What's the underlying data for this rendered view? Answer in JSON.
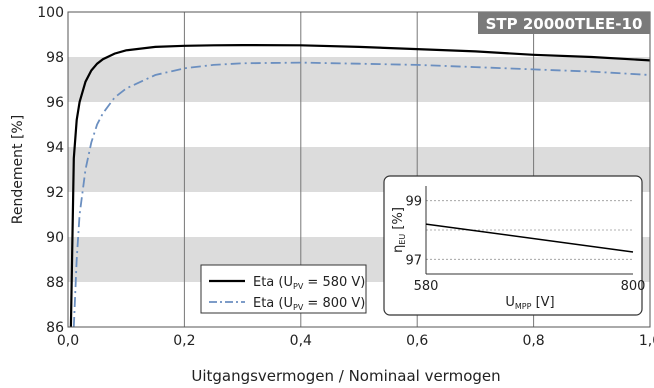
{
  "chart_data": [
    {
      "type": "line",
      "title": "STP 20000TLEE-10",
      "xlabel": "Uitgangsvermogen / Nominaal vermogen",
      "ylabel": "Rendement [%]",
      "xlim": [
        0,
        1
      ],
      "ylim": [
        86,
        100
      ],
      "x_ticks": [
        "0,0",
        "0,2",
        "0,4",
        "0,6",
        "0,8",
        "1,0"
      ],
      "y_ticks": [
        "86",
        "88",
        "90",
        "92",
        "94",
        "96",
        "98",
        "100"
      ],
      "grid": "vertical lines at x ticks, alternating gray bands every 2 %",
      "legend_position": "bottom-left",
      "series": [
        {
          "name": "Eta (U_PV = 580 V)",
          "legend_main": "Eta (U",
          "legend_sub": "PV",
          "legend_tail": " = 580 V)",
          "style": "solid",
          "color": "#000000",
          "x": [
            0.005,
            0.01,
            0.015,
            0.02,
            0.03,
            0.04,
            0.05,
            0.06,
            0.08,
            0.1,
            0.15,
            0.2,
            0.25,
            0.3,
            0.4,
            0.5,
            0.6,
            0.7,
            0.8,
            0.9,
            1.0
          ],
          "y": [
            86.0,
            93.5,
            95.2,
            96.0,
            96.9,
            97.4,
            97.7,
            97.9,
            98.15,
            98.3,
            98.45,
            98.5,
            98.52,
            98.53,
            98.52,
            98.45,
            98.35,
            98.25,
            98.1,
            98.0,
            97.85
          ]
        },
        {
          "name": "Eta (U_PV = 800 V)",
          "legend_main": "Eta (U",
          "legend_sub": "PV",
          "legend_tail": " = 800 V)",
          "style": "dash-dot",
          "color": "#6b8fc0",
          "x": [
            0.01,
            0.015,
            0.02,
            0.03,
            0.04,
            0.05,
            0.06,
            0.08,
            0.1,
            0.15,
            0.2,
            0.25,
            0.3,
            0.4,
            0.5,
            0.6,
            0.7,
            0.8,
            0.9,
            1.0
          ],
          "y": [
            86.0,
            89.0,
            91.0,
            93.0,
            94.2,
            95.0,
            95.5,
            96.2,
            96.6,
            97.2,
            97.5,
            97.65,
            97.72,
            97.75,
            97.7,
            97.65,
            97.55,
            97.45,
            97.35,
            97.2
          ]
        }
      ]
    },
    {
      "type": "line",
      "title": "",
      "xlabel_main": "U",
      "xlabel_sub": "MPP",
      "xlabel_tail": " [V]",
      "ylabel_main": "η",
      "ylabel_sub": "EU",
      "ylabel_tail": " [%]",
      "xlim": [
        580,
        800
      ],
      "ylim": [
        96.5,
        99.5
      ],
      "x_ticks": [
        "580",
        "800"
      ],
      "y_ticks": [
        "97",
        "99"
      ],
      "grid": "dashed horizontal lines",
      "series": [
        {
          "x": [
            580,
            800
          ],
          "y": [
            98.2,
            97.25
          ],
          "color": "#000000",
          "style": "solid"
        }
      ]
    }
  ]
}
